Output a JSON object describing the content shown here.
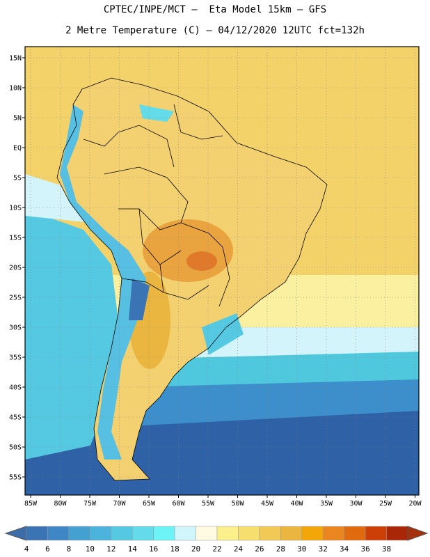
{
  "header": {
    "line1": "CPTEC/INPE/MCT –  Eta Model 15km – GFS",
    "line2": "2 Metre Temperature (C) – 04/12/2020 12UTC fct=132h"
  },
  "axes": {
    "lat_labels": [
      "15N",
      "10N",
      "5N",
      "EQ",
      "5S",
      "10S",
      "15S",
      "20S",
      "25S",
      "30S",
      "35S",
      "40S",
      "45S",
      "50S",
      "55S"
    ],
    "lon_labels": [
      "85W",
      "80W",
      "75W",
      "70W",
      "65W",
      "60W",
      "55W",
      "50W",
      "45W",
      "40W",
      "35W",
      "30W",
      "25W",
      "20W"
    ]
  },
  "colorbar": {
    "labels": [
      "4",
      "6",
      "8",
      "10",
      "12",
      "14",
      "16",
      "18",
      "20",
      "22",
      "24",
      "26",
      "28",
      "30",
      "32",
      "34",
      "36",
      "38"
    ],
    "colors": [
      "#3a74b4",
      "#3f86c4",
      "#45a0d2",
      "#4cb4dc",
      "#55c9e2",
      "#63dbe9",
      "#6bf3f6",
      "#d0f5fb",
      "#fefbe2",
      "#fbf08c",
      "#f7df6f",
      "#f2c955",
      "#eab63f",
      "#f3a608",
      "#ea861f",
      "#e06a0e",
      "#cc3f06",
      "#a92606"
    ],
    "low_color": "#3e6ca9",
    "high_color": "#a5300c"
  },
  "map": {
    "ocean_south_deep": "#2f61a6",
    "ocean_south_mid": "#3c8fca",
    "ocean_south_light": "#4fc8dd",
    "ocean_tropical": "#f4d26a",
    "land": "#f3d070",
    "land_hot": "#e9a43f",
    "andes_cold": "#57bfe2",
    "grid_color": "#808080"
  }
}
